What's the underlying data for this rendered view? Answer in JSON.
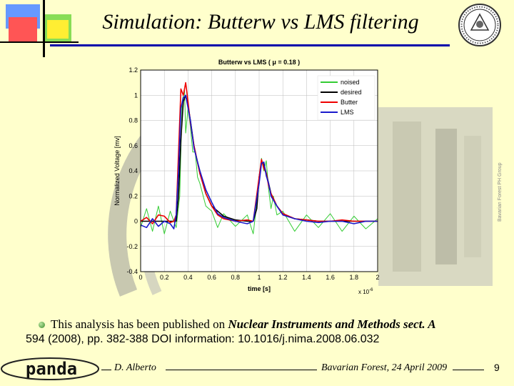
{
  "slide": {
    "title": "Simulation: Butterw vs LMS filtering",
    "caption_part1": "This analysis has been published on ",
    "caption_journal": "Nuclear Instruments and Methods sect. A",
    "caption_line2": "594 (2008), pp. 382-388 DOI information: 10.1016/j.nima.2008.06.032",
    "author": "D. Alberto",
    "event": "Bavarian Forest, 24 April 2009",
    "page_number": "9",
    "logo_text": "panda",
    "side_note": "Bavarian Forest PH Group"
  },
  "chart_data": {
    "type": "line",
    "title": "Butterw vs LMS ( μ = 0.18 )",
    "xlabel": "time [s]",
    "ylabel": "Normalized Voltage [mv]",
    "x_multiplier": "x 10",
    "x_multiplier_exp": "-6",
    "xlim": [
      0,
      2
    ],
    "ylim": [
      -0.4,
      1.2
    ],
    "x_ticks": [
      "0",
      "0.2",
      "0.4",
      "0.6",
      "0.8",
      "1",
      "1.2",
      "1.4",
      "1.6",
      "1.8",
      "2"
    ],
    "y_ticks": [
      "-0.4",
      "-0.2",
      "0",
      "0.2",
      "0.4",
      "0.6",
      "0.8",
      "1",
      "1.2"
    ],
    "legend_position": "top-right",
    "colors": {
      "noised": "#33cc33",
      "desired": "#000000",
      "butter": "#ee0000",
      "lms": "#1a1acc"
    },
    "series": [
      {
        "name": "noised",
        "key": "noised",
        "x": [
          0.0,
          0.05,
          0.1,
          0.15,
          0.2,
          0.25,
          0.3,
          0.33,
          0.35,
          0.37,
          0.38,
          0.4,
          0.42,
          0.44,
          0.46,
          0.48,
          0.5,
          0.55,
          0.6,
          0.65,
          0.7,
          0.8,
          0.9,
          0.95,
          1.0,
          1.02,
          1.04,
          1.06,
          1.08,
          1.1,
          1.12,
          1.15,
          1.2,
          1.3,
          1.4,
          1.5,
          1.6,
          1.7,
          1.8,
          1.9,
          2.0
        ],
        "y": [
          -0.05,
          0.1,
          -0.08,
          0.12,
          -0.1,
          0.08,
          -0.05,
          0.2,
          0.95,
          1.05,
          0.7,
          0.9,
          0.75,
          0.55,
          0.55,
          0.35,
          0.3,
          0.12,
          0.08,
          -0.05,
          0.06,
          -0.04,
          0.05,
          -0.1,
          0.3,
          0.5,
          0.4,
          0.48,
          0.25,
          0.1,
          0.2,
          0.05,
          0.08,
          -0.08,
          0.05,
          -0.05,
          0.06,
          -0.08,
          0.04,
          -0.06,
          0.02
        ]
      },
      {
        "name": "desired",
        "key": "desired",
        "x": [
          0.0,
          0.25,
          0.3,
          0.32,
          0.34,
          0.36,
          0.38,
          0.4,
          0.42,
          0.45,
          0.5,
          0.55,
          0.6,
          0.7,
          0.8,
          0.9,
          0.95,
          0.98,
          1.0,
          1.02,
          1.04,
          1.06,
          1.08,
          1.1,
          1.15,
          1.2,
          1.3,
          1.4,
          1.5,
          1.6,
          1.8,
          2.0
        ],
        "y": [
          0.0,
          0.0,
          0.0,
          0.2,
          0.65,
          0.95,
          1.0,
          0.92,
          0.8,
          0.6,
          0.38,
          0.22,
          0.12,
          0.04,
          0.01,
          0.0,
          0.0,
          0.1,
          0.35,
          0.47,
          0.45,
          0.38,
          0.3,
          0.22,
          0.12,
          0.06,
          0.02,
          0.01,
          0.0,
          0.0,
          0.0,
          0.0
        ]
      },
      {
        "name": "Butter",
        "key": "butter",
        "x": [
          0.0,
          0.05,
          0.1,
          0.15,
          0.2,
          0.25,
          0.28,
          0.3,
          0.32,
          0.34,
          0.36,
          0.38,
          0.4,
          0.42,
          0.45,
          0.5,
          0.55,
          0.6,
          0.65,
          0.7,
          0.8,
          0.9,
          0.95,
          1.0,
          1.02,
          1.04,
          1.06,
          1.08,
          1.1,
          1.15,
          1.2,
          1.3,
          1.4,
          1.5,
          1.6,
          1.7,
          1.8,
          1.9,
          2.0
        ],
        "y": [
          0.0,
          0.03,
          -0.02,
          0.05,
          0.04,
          -0.01,
          0.0,
          0.05,
          0.55,
          1.05,
          1.0,
          1.1,
          0.95,
          0.78,
          0.6,
          0.38,
          0.22,
          0.12,
          0.05,
          0.02,
          0.0,
          0.01,
          0.0,
          0.35,
          0.49,
          0.42,
          0.38,
          0.28,
          0.22,
          0.12,
          0.06,
          0.02,
          0.01,
          0.0,
          0.0,
          0.01,
          0.0,
          0.0,
          0.0
        ]
      },
      {
        "name": "LMS",
        "key": "lms",
        "x": [
          0.0,
          0.05,
          0.1,
          0.15,
          0.2,
          0.25,
          0.28,
          0.3,
          0.32,
          0.34,
          0.36,
          0.38,
          0.4,
          0.42,
          0.45,
          0.5,
          0.55,
          0.6,
          0.65,
          0.7,
          0.8,
          0.9,
          0.95,
          1.0,
          1.02,
          1.04,
          1.06,
          1.08,
          1.1,
          1.15,
          1.2,
          1.3,
          1.4,
          1.5,
          1.6,
          1.7,
          1.8,
          1.9,
          2.0
        ],
        "y": [
          -0.03,
          -0.05,
          0.02,
          -0.04,
          0.0,
          -0.02,
          -0.06,
          0.05,
          0.4,
          0.9,
          0.98,
          1.0,
          0.9,
          0.8,
          0.58,
          0.4,
          0.25,
          0.15,
          0.06,
          0.03,
          0.0,
          -0.02,
          0.0,
          0.3,
          0.46,
          0.47,
          0.36,
          0.3,
          0.2,
          0.12,
          0.05,
          0.02,
          0.0,
          -0.01,
          0.0,
          0.0,
          -0.02,
          0.0,
          0.0
        ]
      }
    ]
  }
}
